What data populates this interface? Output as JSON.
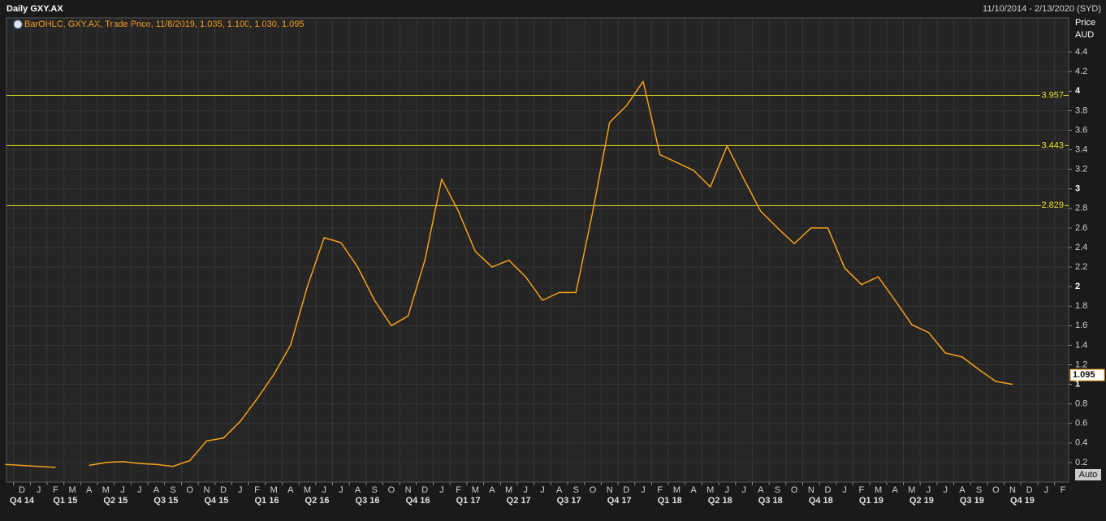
{
  "chart_data": {
    "type": "line",
    "title": "Daily GXY.AX",
    "subtitle": "11/10/2014 - 2/13/2020 (SYD)",
    "legend_text": "BarOHLC, GXY.AX, Trade Price, 11/8/2019, 1.035, 1.100, 1.030, 1.095",
    "y_axis_label": "Price",
    "y_axis_unit": "AUD",
    "scale_mode": "Auto",
    "last_price": 1.095,
    "color": "#f5a01a",
    "grid": true,
    "categories": [
      null,
      "D",
      "J",
      "F",
      "M",
      "A",
      "M",
      "J",
      "J",
      "A",
      "S",
      "O",
      "N",
      "D",
      "J",
      "F",
      "M",
      "A",
      "M",
      "J",
      "J",
      "A",
      "S",
      "O",
      "N",
      "D",
      "J",
      "F",
      "M",
      "A",
      "M",
      "J",
      "J",
      "A",
      "S",
      "O",
      "N",
      "D",
      "J",
      "F",
      "M",
      "A",
      "M",
      "J",
      "J",
      "A",
      "S",
      "O",
      "N",
      "D",
      "J",
      "F",
      "M",
      "A",
      "M",
      "J",
      "J",
      "A",
      "S",
      "O",
      "N",
      "D",
      "J",
      "F"
    ],
    "quarters": [
      null,
      "Q4 14",
      null,
      "Q1 15",
      null,
      null,
      "Q2 15",
      null,
      null,
      "Q3 15",
      null,
      null,
      "Q4 15",
      null,
      null,
      "Q1 16",
      null,
      null,
      "Q2 16",
      null,
      null,
      "Q3 16",
      null,
      null,
      "Q4 16",
      null,
      null,
      "Q1 17",
      null,
      null,
      "Q2 17",
      null,
      null,
      "Q3 17",
      null,
      null,
      "Q4 17",
      null,
      null,
      "Q1 18",
      null,
      null,
      "Q2 18",
      null,
      null,
      "Q3 18",
      null,
      null,
      "Q4 18",
      null,
      null,
      "Q1 19",
      null,
      null,
      "Q2 19",
      null,
      null,
      "Q3 19",
      null,
      null,
      "Q4 19",
      null,
      null,
      null
    ],
    "values": [
      0.18,
      0.17,
      0.16,
      0.15,
      null,
      0.17,
      0.2,
      0.21,
      0.19,
      0.18,
      0.16,
      0.22,
      0.42,
      0.45,
      0.62,
      0.85,
      1.1,
      1.4,
      2.0,
      2.5,
      2.45,
      2.2,
      1.86,
      1.6,
      1.7,
      2.27,
      3.1,
      2.77,
      2.36,
      2.2,
      2.27,
      2.1,
      1.86,
      1.94,
      1.94,
      2.77,
      3.68,
      3.85,
      4.1,
      3.35,
      3.27,
      3.19,
      3.02,
      3.44,
      3.1,
      2.77,
      2.6,
      2.44,
      2.6,
      2.6,
      2.19,
      2.02,
      2.1,
      1.86,
      1.61,
      1.53,
      1.32,
      1.28,
      1.15,
      1.03,
      1.0,
      null,
      null,
      null
    ],
    "ylim": [
      0,
      4.75
    ],
    "yticks": [
      0.2,
      0.4,
      0.6,
      0.8,
      1,
      1.2,
      1.4,
      1.6,
      1.8,
      2,
      2.2,
      2.4,
      2.6,
      2.8,
      3,
      3.2,
      3.4,
      3.6,
      3.8,
      4,
      4.2,
      4.4
    ],
    "hlines": [
      3.957,
      3.443,
      2.829
    ],
    "hline_color": "#e8e020"
  }
}
